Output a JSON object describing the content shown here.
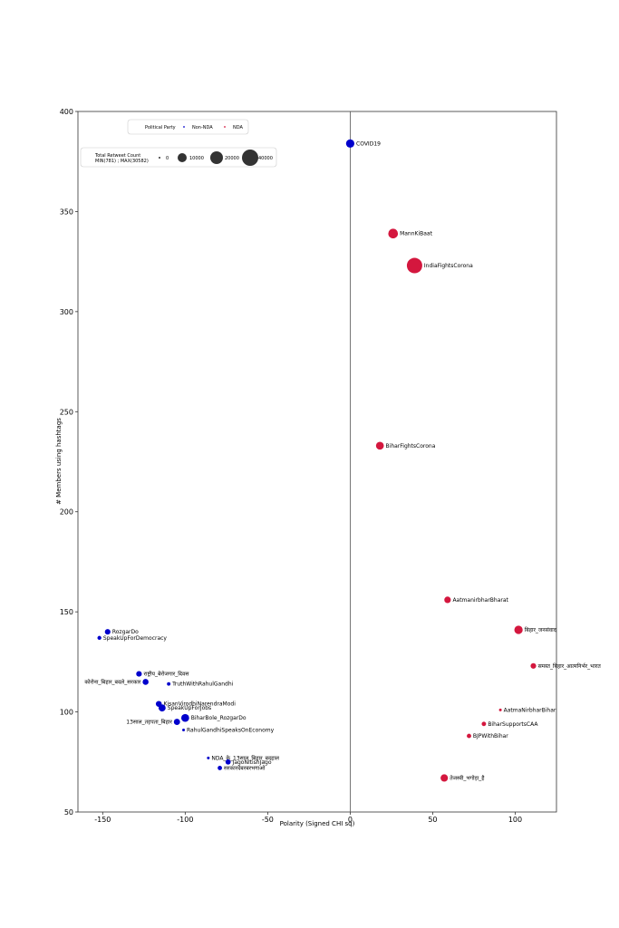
{
  "chart_data": {
    "type": "scatter",
    "title": "",
    "xlabel": "Polarity (Signed CHI sq)",
    "ylabel": "# Members using hashtags",
    "xlim": [
      -165,
      125
    ],
    "ylim": [
      50,
      400
    ],
    "xticks": [
      "-150",
      "-100",
      "-50",
      "0",
      "50",
      "100"
    ],
    "xtick_values": [
      -150,
      -100,
      -50,
      0,
      50,
      100
    ],
    "yticks": [
      "50",
      "100",
      "150",
      "200",
      "250",
      "300",
      "350",
      "400"
    ],
    "ytick_values": [
      50,
      100,
      150,
      200,
      250,
      300,
      350,
      400
    ],
    "grid": false,
    "reference_line_x": 0,
    "colors": {
      "non_nda": "#0000cc",
      "nda": "#d4173e"
    },
    "legend_party": {
      "title": "Political Party",
      "entries": [
        "Non-NDA",
        "NDA"
      ],
      "placement": "top-left"
    },
    "legend_size": {
      "title_line1": "Total Retweet Count",
      "title_line2": "MIN(781) ; MAX(30582)",
      "entries": [
        "0",
        "10000",
        "20000",
        "40000"
      ],
      "entry_values": [
        0,
        10000,
        20000,
        40000
      ],
      "placement": "top-left"
    },
    "points": [
      {
        "label": "COVID19",
        "x": 0,
        "y": 384,
        "group": "non_nda",
        "size": 9000
      },
      {
        "label": "MannKiBaat",
        "x": 26,
        "y": 339,
        "group": "nda",
        "size": 12000
      },
      {
        "label": "IndiaFightsCorona",
        "x": 39,
        "y": 323,
        "group": "nda",
        "size": 30582
      },
      {
        "label": "BiharFightsCorona",
        "x": 18,
        "y": 233,
        "group": "nda",
        "size": 8000
      },
      {
        "label": "AatmanirbharBharat",
        "x": 59,
        "y": 156,
        "group": "nda",
        "size": 5500
      },
      {
        "label": "बिहार_जनसंवाद",
        "x": 102,
        "y": 141,
        "group": "nda",
        "size": 9000
      },
      {
        "label": "समस्त_बिहार_आत्मनिर्भर_भारत",
        "x": 111,
        "y": 123,
        "group": "nda",
        "size": 4000
      },
      {
        "label": "AatmaNirbharBihar",
        "x": 91,
        "y": 101,
        "group": "nda",
        "size": 900
      },
      {
        "label": "BiharSupportsCAA",
        "x": 81,
        "y": 94,
        "group": "nda",
        "size": 2500
      },
      {
        "label": "BJPWithBihar",
        "x": 72,
        "y": 88,
        "group": "nda",
        "size": 2500
      },
      {
        "label": "तेजस्वी_भगोड़ा_है",
        "x": 57,
        "y": 67,
        "group": "nda",
        "size": 7000
      },
      {
        "label": "RozgarDo",
        "x": -147,
        "y": 140,
        "group": "non_nda",
        "size": 4000
      },
      {
        "label": "SpeakUpForDemocracy",
        "x": -152,
        "y": 137,
        "group": "non_nda",
        "size": 2000
      },
      {
        "label": "राष्ट्रीय_बेरोजगार_दिवस",
        "x": -128,
        "y": 119,
        "group": "non_nda",
        "size": 4000
      },
      {
        "label": "कोरोना_बिहार_बदले_सरकार",
        "x": -124,
        "y": 115,
        "group": "non_nda",
        "size": 4500
      },
      {
        "label": "TruthWithRahulGandhi",
        "x": -110,
        "y": 114,
        "group": "non_nda",
        "size": 1600
      },
      {
        "label": "KisanVirodhiNarendraModi",
        "x": -116,
        "y": 104,
        "group": "non_nda",
        "size": 4500
      },
      {
        "label": "SpeakUpForJobs",
        "x": -114,
        "y": 102,
        "group": "non_nda",
        "size": 6500
      },
      {
        "label": "BiharBole_RozgarDo",
        "x": -100,
        "y": 97,
        "group": "non_nda",
        "size": 8000
      },
      {
        "label": "13साल_तड़पता_बिहार",
        "x": -105,
        "y": 95,
        "group": "non_nda",
        "size": 5000
      },
      {
        "label": "RahulGandhiSpeaksOnEconomy",
        "x": -101,
        "y": 91,
        "group": "non_nda",
        "size": 800
      },
      {
        "label": "NDA_के_13साल_बिहार_बदहाल",
        "x": -86,
        "y": 77,
        "group": "non_nda",
        "size": 800
      },
      {
        "label": "JagoNitishJago",
        "x": -74,
        "y": 75,
        "group": "non_nda",
        "size": 3500
      },
      {
        "label": "सरकारदेबरबरभगाओ",
        "x": -79,
        "y": 72,
        "group": "non_nda",
        "size": 2500
      }
    ]
  }
}
